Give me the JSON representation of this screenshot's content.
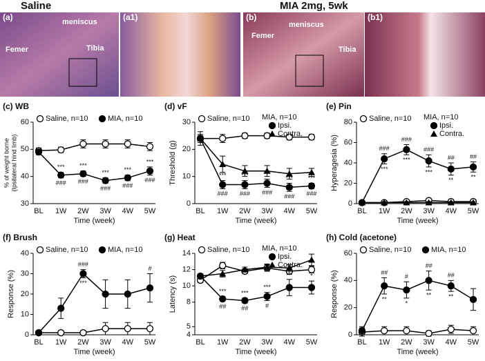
{
  "histology": {
    "groups": [
      "Saline",
      "MIA 2mg, 5wk"
    ],
    "panels": [
      {
        "label": "(a)",
        "notes": [
          "meniscus",
          "Femer",
          "Tibia"
        ]
      },
      {
        "label": "(a1)"
      },
      {
        "label": "(b)",
        "notes": [
          "meniscus",
          "Femer",
          "Tibia"
        ]
      },
      {
        "label": "(b1)"
      }
    ]
  },
  "chart_data": [
    {
      "type": "line",
      "title": "(c) WB",
      "xlabel": "Time (week)",
      "ylabel": "% of weight borne",
      "ylabel2": "(Ipsilateral hind limb)",
      "categories": [
        "BL",
        "1W",
        "2W",
        "3W",
        "4W",
        "5W"
      ],
      "ylim": [
        30,
        60
      ],
      "yticks": [
        30,
        40,
        50,
        60
      ],
      "series": [
        {
          "name": "Saline, n=10",
          "marker": "open",
          "color": "#000000",
          "values": [
            49.5,
            49.8,
            52,
            52,
            52,
            51
          ],
          "errors": [
            1,
            1,
            1.5,
            1.5,
            1.5,
            1.5
          ]
        },
        {
          "name": "MIA, n=10",
          "marker": "circle",
          "color": "#000000",
          "values": [
            49,
            40.5,
            41,
            38.5,
            39.5,
            42
          ],
          "errors": [
            1,
            1,
            1,
            1,
            1,
            1.5
          ],
          "stars": [
            null,
            "***",
            "***",
            "***",
            "***",
            "***"
          ],
          "hashes": [
            null,
            "###",
            "###",
            "###",
            "###",
            "###"
          ]
        }
      ]
    },
    {
      "type": "line",
      "title": "(d) vF",
      "xlabel": "Time (week)",
      "ylabel": "Threshold (g)",
      "legend_title": "MIA, n=10",
      "categories": [
        "BL",
        "1W",
        "2W",
        "3W",
        "4W",
        "5W"
      ],
      "ylim": [
        0,
        30
      ],
      "yticks": [
        0,
        10,
        20,
        30
      ],
      "series": [
        {
          "name": "Saline, n=10",
          "marker": "open",
          "color": "#000000",
          "values": [
            24,
            24,
            25,
            25,
            24.5,
            24.5
          ],
          "errors": [
            1,
            1.5,
            1,
            1,
            1,
            1
          ]
        },
        {
          "name": "Ipsi.",
          "marker": "circle",
          "color": "#000000",
          "values": [
            24,
            7,
            7,
            7.5,
            6,
            6.5
          ],
          "errors": [
            2.5,
            1.5,
            1.5,
            1.5,
            1.5,
            1
          ],
          "stars": [
            null,
            "***",
            "***",
            "***",
            "***",
            "***"
          ],
          "hashes": [
            null,
            "###",
            "###",
            "###",
            "###",
            "###"
          ]
        },
        {
          "name": "Contra.",
          "marker": "triangle",
          "color": "#000000",
          "values": [
            24,
            14.5,
            12,
            12,
            11,
            11.5
          ],
          "errors": [
            1.5,
            3,
            2,
            2,
            2,
            1.5
          ]
        }
      ]
    },
    {
      "type": "line",
      "title": "(e) Pin",
      "xlabel": "Time (week)",
      "ylabel": "Hyperagesia (%)",
      "legend_title": "MIA, n=10",
      "categories": [
        "BL",
        "1W",
        "2W",
        "3W",
        "4W",
        "5W"
      ],
      "ylim": [
        0,
        80
      ],
      "yticks": [
        0,
        20,
        40,
        60,
        80
      ],
      "series": [
        {
          "name": "Saline, n=10",
          "marker": "open",
          "color": "#000000",
          "values": [
            1,
            1,
            2,
            3,
            2,
            2
          ],
          "errors": [
            1,
            1,
            1,
            1,
            1,
            1
          ]
        },
        {
          "name": "Ipsi.",
          "marker": "circle",
          "color": "#000000",
          "values": [
            1,
            44,
            53,
            42,
            34,
            36
          ],
          "errors": [
            1,
            5,
            5,
            6,
            6,
            5
          ],
          "stars": [
            null,
            "***",
            "***",
            "***",
            "**",
            "**"
          ],
          "hashes": [
            null,
            "###",
            "###",
            "###",
            "##",
            "##"
          ]
        },
        {
          "name": "Contra.",
          "marker": "triangle",
          "color": "#000000",
          "values": [
            1,
            1,
            1,
            1,
            1,
            1
          ],
          "errors": [
            1,
            1,
            1,
            1,
            1,
            1
          ]
        }
      ]
    },
    {
      "type": "line",
      "title": "(f) Brush",
      "xlabel": "Time (week)",
      "ylabel": "Response (%)",
      "categories": [
        "BL",
        "1W",
        "2W",
        "3W",
        "4W",
        "5W"
      ],
      "ylim": [
        0,
        40
      ],
      "yticks": [
        0,
        10,
        20,
        30,
        40
      ],
      "series": [
        {
          "name": "Saline, n=10",
          "marker": "open",
          "color": "#000000",
          "values": [
            1,
            1,
            1,
            3,
            3,
            3
          ],
          "errors": [
            1,
            1,
            1,
            3,
            3,
            3
          ]
        },
        {
          "name": "MIA, n=10",
          "marker": "circle",
          "color": "#000000",
          "values": [
            1,
            13,
            30,
            20,
            20,
            23
          ],
          "errors": [
            1,
            5,
            2,
            7,
            7,
            7
          ],
          "stars": [
            null,
            null,
            "***",
            null,
            null,
            null
          ],
          "hashes": [
            null,
            null,
            "###",
            null,
            null,
            "#"
          ]
        }
      ]
    },
    {
      "type": "line",
      "title": "(g) Heat",
      "xlabel": "Time (week)",
      "ylabel": "Latency (s)",
      "legend_title": "MIA, n=10",
      "categories": [
        "BL",
        "1W",
        "2W",
        "3W",
        "4W",
        "5W"
      ],
      "ylim": [
        4,
        14
      ],
      "yticks": [
        4,
        5,
        8,
        10,
        12,
        14
      ],
      "series": [
        {
          "name": "Saline, n=10",
          "marker": "open",
          "color": "#000000",
          "values": [
            10.7,
            12.5,
            11.8,
            12.2,
            11.8,
            12
          ],
          "errors": [
            0.3,
            0.4,
            0.3,
            0.4,
            0.4,
            0.4
          ]
        },
        {
          "name": "Ipsi.",
          "marker": "circle",
          "color": "#000000",
          "values": [
            11.2,
            8.4,
            8.2,
            8.7,
            9.8,
            9.8
          ],
          "errors": [
            0.3,
            0.3,
            0.3,
            0.5,
            1,
            0.8
          ],
          "stars": [
            null,
            "***",
            "***",
            "***",
            "*",
            "*"
          ],
          "hashes": [
            null,
            "##",
            "##",
            "#",
            null,
            null
          ]
        },
        {
          "name": "Contra.",
          "marker": "triangle",
          "color": "#000000",
          "values": [
            11.2,
            11.5,
            12,
            12.3,
            12.2,
            13.2
          ],
          "errors": [
            0.3,
            0.4,
            0.3,
            0.4,
            0.4,
            0.7
          ]
        }
      ]
    },
    {
      "type": "line",
      "title": "(h) Cold (acetone)",
      "xlabel": "Time (week)",
      "ylabel": "Response (%)",
      "categories": [
        "BL",
        "1W",
        "2W",
        "3W",
        "4W",
        "5W"
      ],
      "ylim": [
        0,
        60
      ],
      "yticks": [
        0,
        20,
        40,
        60
      ],
      "series": [
        {
          "name": "Saline, n=10",
          "marker": "open",
          "color": "#000000",
          "values": [
            2,
            3,
            3,
            1,
            4,
            3
          ],
          "errors": [
            3,
            3,
            3,
            2,
            3,
            3
          ]
        },
        {
          "name": "MIA, n=10",
          "marker": "circle",
          "color": "#000000",
          "values": [
            3,
            36,
            33,
            40,
            36,
            26
          ],
          "errors": [
            3,
            6,
            6,
            7,
            4,
            8
          ],
          "stars": [
            null,
            "**",
            "*",
            "**",
            "**",
            null
          ],
          "hashes": [
            null,
            "##",
            "#",
            "##",
            "##",
            null
          ]
        }
      ]
    }
  ]
}
